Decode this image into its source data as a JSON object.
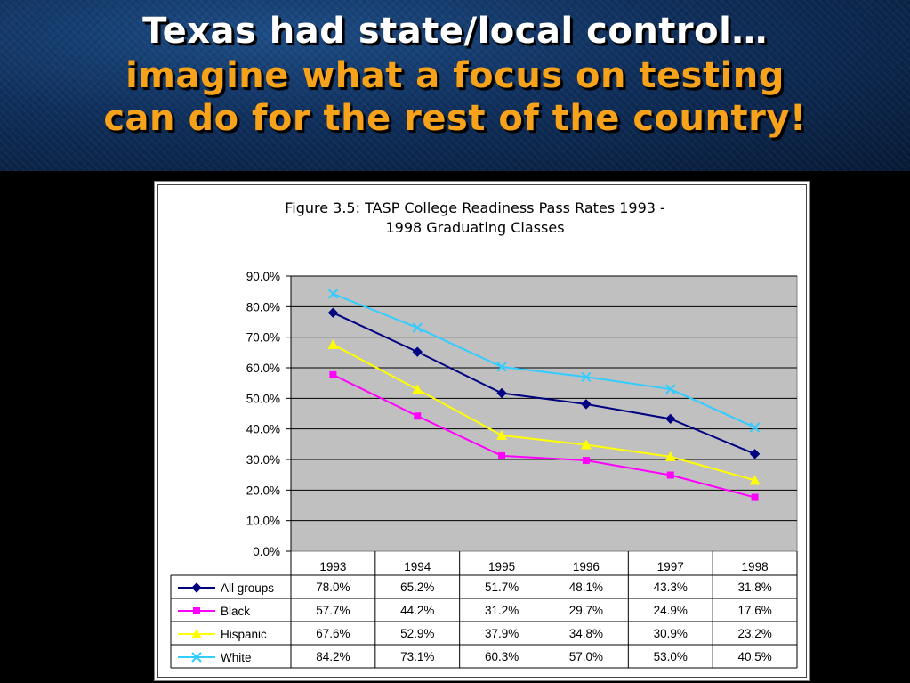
{
  "slide": {
    "title_line1": "Texas had state/local control…",
    "title_line2": "imagine what a focus on testing",
    "title_line3": "can do for the rest of the country!"
  },
  "figure": {
    "title_line1": "Figure 3.5: TASP College Readiness Pass Rates 1993 -",
    "title_line2": "1998 Graduating Classes"
  },
  "chart_data": {
    "type": "line",
    "title": "Figure 3.5: TASP College Readiness Pass Rates 1993 - 1998 Graduating Classes",
    "categories": [
      "1993",
      "1994",
      "1995",
      "1996",
      "1997",
      "1998"
    ],
    "ylim": [
      0,
      90
    ],
    "yticks": [
      "0.0%",
      "10.0%",
      "20.0%",
      "30.0%",
      "40.0%",
      "50.0%",
      "60.0%",
      "70.0%",
      "80.0%",
      "90.0%"
    ],
    "grid": true,
    "plot_background": "#c0c0c0",
    "legend_placement": "data-table",
    "series": [
      {
        "name": "All groups",
        "values": [
          78.0,
          65.2,
          51.7,
          48.1,
          43.3,
          31.8
        ],
        "labels": [
          "78.0%",
          "65.2%",
          "51.7%",
          "48.1%",
          "43.3%",
          "31.8%"
        ],
        "color": "#000080",
        "marker": "diamond"
      },
      {
        "name": "Black",
        "values": [
          57.7,
          44.2,
          31.2,
          29.7,
          24.9,
          17.6
        ],
        "labels": [
          "57.7%",
          "44.2%",
          "31.2%",
          "29.7%",
          "24.9%",
          "17.6%"
        ],
        "color": "#ff00ff",
        "marker": "square"
      },
      {
        "name": "Hispanic",
        "values": [
          67.6,
          52.9,
          37.9,
          34.8,
          30.9,
          23.2
        ],
        "labels": [
          "67.6%",
          "52.9%",
          "37.9%",
          "34.8%",
          "30.9%",
          "23.2%"
        ],
        "color": "#ffff00",
        "marker": "triangle"
      },
      {
        "name": "White",
        "values": [
          84.2,
          73.1,
          60.3,
          57.0,
          53.0,
          40.5
        ],
        "labels": [
          "84.2%",
          "73.1%",
          "60.3%",
          "57.0%",
          "53.0%",
          "40.5%"
        ],
        "color": "#33ccff",
        "marker": "x"
      }
    ]
  }
}
